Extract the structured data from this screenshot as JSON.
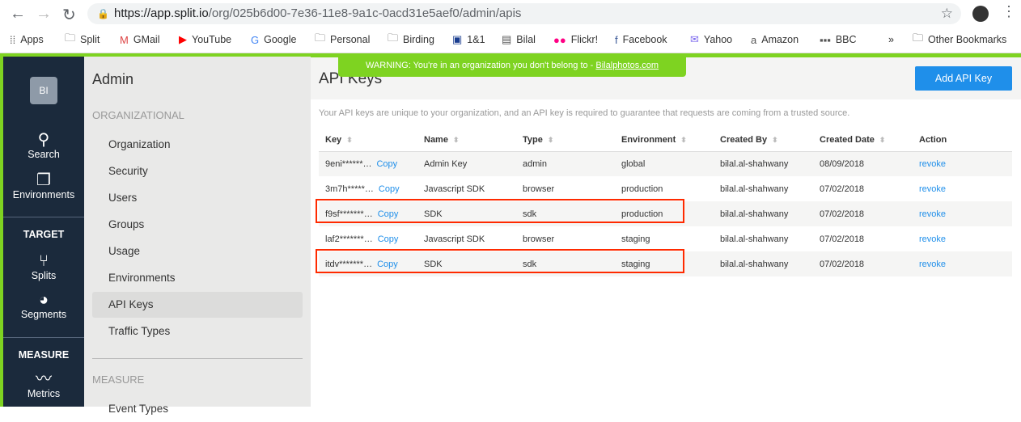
{
  "browser": {
    "url_host": "https://app.split.io",
    "url_path": "/org/025b6d00-7e36-11e8-9a1c-0acd31e5aef0/admin/apis",
    "bookmarks": [
      {
        "icon": "apps-grid-icon",
        "label": "Apps"
      },
      {
        "icon": "folder-icon",
        "label": "Split"
      },
      {
        "icon": "gmail-icon",
        "label": "GMail"
      },
      {
        "icon": "youtube-icon",
        "label": "YouTube"
      },
      {
        "icon": "google-icon",
        "label": "Google"
      },
      {
        "icon": "folder-icon",
        "label": "Personal"
      },
      {
        "icon": "folder-icon",
        "label": "Birding"
      },
      {
        "icon": "oneandone-icon",
        "label": "1&1"
      },
      {
        "icon": "page-icon",
        "label": "Bilal"
      },
      {
        "icon": "flickr-icon",
        "label": "Flickr!"
      },
      {
        "icon": "facebook-icon",
        "label": "Facebook"
      },
      {
        "icon": "yahoo-icon",
        "label": "Yahoo"
      },
      {
        "icon": "amazon-icon",
        "label": "Amazon"
      },
      {
        "icon": "bbc-icon",
        "label": "BBC"
      }
    ],
    "more": "»",
    "other_bookmarks": "Other Bookmarks"
  },
  "warning": {
    "text": "WARNING: You're in an organization you don't belong to - ",
    "org": "Bilalphotos.com"
  },
  "leftnav": {
    "avatar": "BI",
    "search": "Search",
    "environments": "Environments",
    "target": "TARGET",
    "splits": "Splits",
    "segments": "Segments",
    "measure": "MEASURE",
    "metrics": "Metrics"
  },
  "sidebar": {
    "title": "Admin",
    "organizational": "ORGANIZATIONAL",
    "items": [
      "Organization",
      "Security",
      "Users",
      "Groups",
      "Usage",
      "Environments",
      "API Keys",
      "Traffic Types"
    ],
    "active": "API Keys",
    "measure": "MEASURE",
    "measure_items": [
      "Event Types"
    ]
  },
  "main": {
    "title": "API Keys",
    "add_button": "Add API Key",
    "description": "Your API keys are unique to your organization, and an API key is required to guarantee that requests are coming from a trusted source.",
    "columns": [
      "Key",
      "Name",
      "Type",
      "Environment",
      "Created By",
      "Created Date",
      "Action"
    ],
    "copy_label": "Copy",
    "rows": [
      {
        "key": "9eni******…",
        "name": "Admin Key",
        "type": "admin",
        "env": "global",
        "by": "bilal.al-shahwany",
        "date": "08/09/2018",
        "action": "revoke"
      },
      {
        "key": "3m7h*****…",
        "name": "Javascript SDK",
        "type": "browser",
        "env": "production",
        "by": "bilal.al-shahwany",
        "date": "07/02/2018",
        "action": "revoke"
      },
      {
        "key": "f9sf*******…",
        "name": "SDK",
        "type": "sdk",
        "env": "production",
        "by": "bilal.al-shahwany",
        "date": "07/02/2018",
        "action": "revoke"
      },
      {
        "key": "laf2*******…",
        "name": "Javascript SDK",
        "type": "browser",
        "env": "staging",
        "by": "bilal.al-shahwany",
        "date": "07/02/2018",
        "action": "revoke"
      },
      {
        "key": "itdv*******…",
        "name": "SDK",
        "type": "sdk",
        "env": "staging",
        "by": "bilal.al-shahwany",
        "date": "07/02/2018",
        "action": "revoke"
      }
    ]
  },
  "colors": {
    "accent": "#1f8fea",
    "brand_green": "#7ed321",
    "nav_bg": "#1b2a3c",
    "highlight": "#ff2a00"
  }
}
